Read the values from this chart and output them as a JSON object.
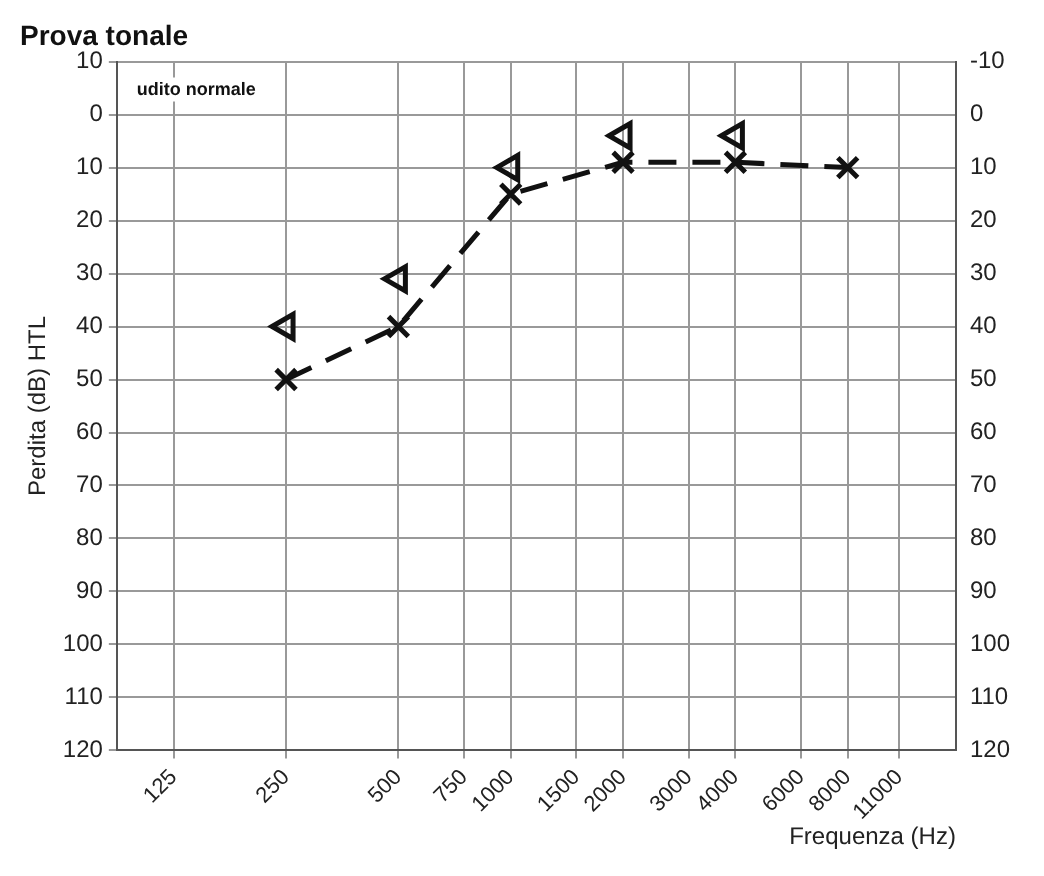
{
  "chart_data": {
    "type": "line",
    "title": "Prova tonale",
    "xlabel": "Frequenza (Hz)",
    "ylabel": "Perdita (dB) HTL",
    "log": "x",
    "xlim": [
      88,
      15600
    ],
    "xticks": [
      125,
      250,
      500,
      750,
      1000,
      1500,
      2000,
      3000,
      4000,
      6000,
      8000,
      11000
    ],
    "ylim": [
      120,
      -10
    ],
    "yticks": [
      {
        "value": -10,
        "label": "10"
      },
      0,
      10,
      20,
      30,
      40,
      50,
      60,
      70,
      80,
      90,
      100,
      110,
      120
    ],
    "y2lim": [
      120,
      -10
    ],
    "y2ticks": [
      -10,
      0,
      10,
      20,
      30,
      40,
      50,
      60,
      70,
      80,
      90,
      100,
      110,
      120
    ],
    "grid": true,
    "marker": "cross",
    "line_style": "dashed",
    "annotations": [
      "udito normale"
    ],
    "series": [
      {
        "color": "#111111",
        "x": [
          250,
          500,
          1000,
          2000,
          4000,
          8000
        ],
        "values": [
          50,
          40,
          15,
          9,
          9,
          10
        ]
      },
      {
        "type": "scatter",
        "marker": "triangle",
        "color": "#111111",
        "x": [
          250,
          500,
          1000,
          2000,
          4000
        ],
        "values": [
          40,
          31,
          10,
          4,
          4
        ]
      }
    ]
  }
}
